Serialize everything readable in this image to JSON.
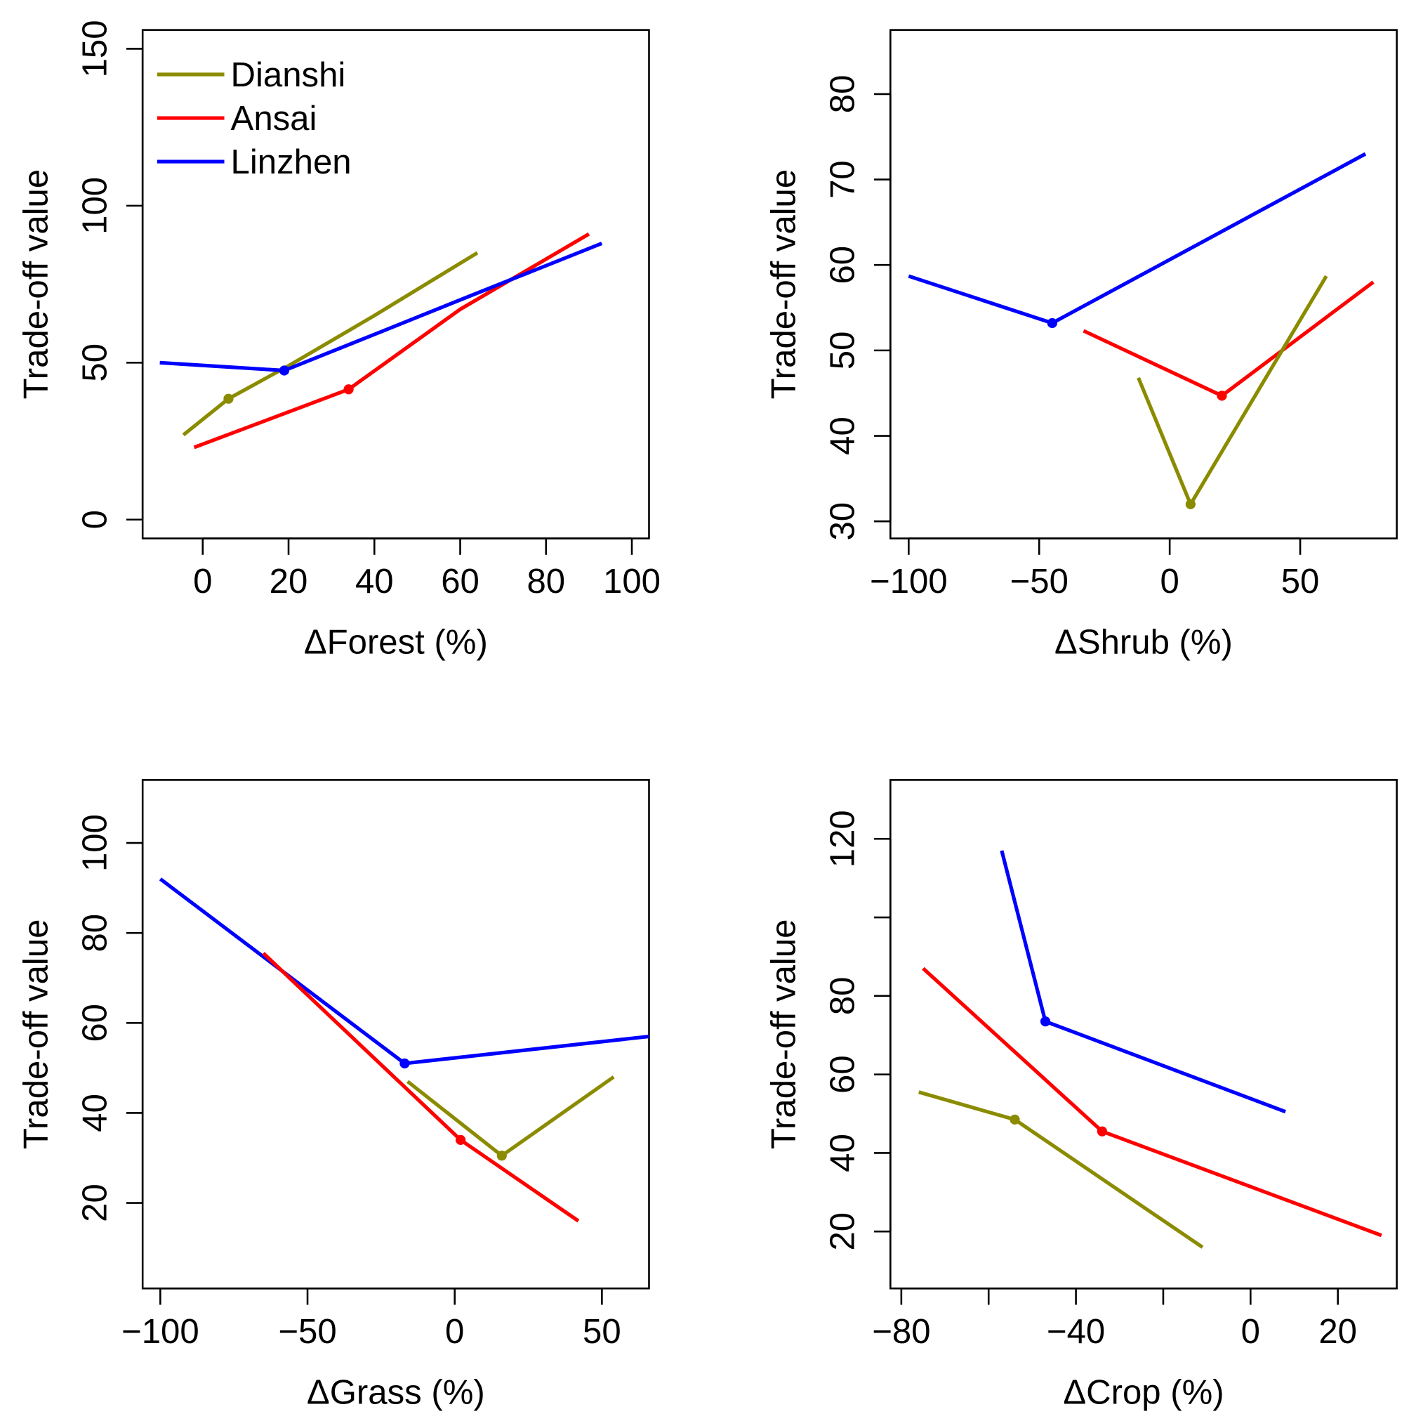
{
  "colors": {
    "Dianshi": "#8b8b00",
    "Ansai": "#ff0000",
    "Linzhen": "#0000ff"
  },
  "legend": {
    "entries": [
      "Dianshi",
      "Ansai",
      "Linzhen"
    ],
    "placement": "top-left",
    "panel": 0
  },
  "chart_data": [
    {
      "type": "line",
      "xlabel": "ΔForest (%)",
      "ylabel": "Trade-off value",
      "xlim": [
        -14,
        104
      ],
      "ylim": [
        -6,
        156
      ],
      "xticks": [
        0,
        20,
        40,
        60,
        80,
        100
      ],
      "xtick_labels": [
        "0",
        "20",
        "40",
        "60",
        "80",
        "100"
      ],
      "yticks": [
        0,
        50,
        100,
        150
      ],
      "ytick_labels": [
        "0",
        "50",
        "100",
        "150"
      ],
      "series": [
        {
          "name": "Dianshi",
          "x": [
            -4.5,
            6,
            20,
            40,
            64
          ],
          "y": [
            27,
            38.5,
            49,
            65,
            85
          ],
          "marker": [
            6,
            38.5
          ]
        },
        {
          "name": "Ansai",
          "x": [
            -2,
            34,
            60,
            90
          ],
          "y": [
            23,
            41.5,
            67,
            91
          ],
          "marker": [
            34,
            41.5
          ]
        },
        {
          "name": "Linzhen",
          "x": [
            -10,
            19,
            40,
            60,
            93
          ],
          "y": [
            50,
            47.5,
            59,
            70,
            88
          ],
          "marker": [
            19,
            47.5
          ]
        }
      ]
    },
    {
      "type": "line",
      "xlabel": "ΔShrub (%)",
      "ylabel": "Trade-off value",
      "xlim": [
        -107,
        87
      ],
      "ylim": [
        28,
        87.5
      ],
      "xticks": [
        -100,
        -50,
        0,
        50
      ],
      "xtick_labels": [
        "−100",
        "−50",
        "0",
        "50"
      ],
      "yticks": [
        30,
        40,
        50,
        60,
        70,
        80
      ],
      "ytick_labels": [
        "30",
        "40",
        "50",
        "60",
        "70",
        "80"
      ],
      "series": [
        {
          "name": "Linzhen",
          "x": [
            -100,
            -45,
            75
          ],
          "y": [
            58.7,
            53.2,
            73
          ],
          "marker": [
            -45,
            53.2
          ]
        },
        {
          "name": "Ansai",
          "x": [
            -33,
            20,
            78
          ],
          "y": [
            52.3,
            44.7,
            58
          ],
          "marker": [
            20,
            44.7
          ]
        },
        {
          "name": "Dianshi",
          "x": [
            -12,
            8,
            60
          ],
          "y": [
            46.8,
            32,
            58.7
          ],
          "marker": [
            8,
            32
          ]
        }
      ]
    },
    {
      "type": "line",
      "xlabel": "ΔGrass (%)",
      "ylabel": "Trade-off value",
      "xlim": [
        -106,
        66
      ],
      "ylim": [
        1,
        114
      ],
      "xticks": [
        -100,
        -50,
        0,
        50
      ],
      "xtick_labels": [
        "−100",
        "−50",
        "0",
        "50"
      ],
      "yticks": [
        20,
        40,
        60,
        80,
        100
      ],
      "ytick_labels": [
        "20",
        "40",
        "60",
        "80",
        "100"
      ],
      "series": [
        {
          "name": "Linzhen",
          "x": [
            -100,
            -17,
            66
          ],
          "y": [
            92,
            51,
            57
          ],
          "marker": [
            -17,
            51
          ]
        },
        {
          "name": "Ansai",
          "x": [
            -65,
            2,
            42
          ],
          "y": [
            75.5,
            34,
            16
          ],
          "marker": [
            2,
            34
          ]
        },
        {
          "name": "Dianshi",
          "x": [
            -16,
            16,
            54
          ],
          "y": [
            47,
            30.5,
            48
          ],
          "marker": [
            16,
            30.5
          ]
        }
      ]
    },
    {
      "type": "line",
      "xlabel": "ΔCrop (%)",
      "ylabel": "Trade-off value",
      "xlim": [
        -82.5,
        33.5
      ],
      "ylim": [
        5.5,
        135
      ],
      "xticks": [
        -80,
        -60,
        -40,
        -20,
        0,
        20
      ],
      "xtick_labels": [
        "−80",
        "",
        "−40",
        "",
        "0",
        "20"
      ],
      "yticks": [
        20,
        40,
        60,
        80,
        100,
        120
      ],
      "ytick_labels": [
        "20",
        "40",
        "60",
        "80",
        "",
        "120"
      ],
      "series": [
        {
          "name": "Linzhen",
          "x": [
            -57,
            -47,
            8
          ],
          "y": [
            117,
            73.5,
            50.5
          ],
          "marker": [
            -47,
            73.5
          ]
        },
        {
          "name": "Ansai",
          "x": [
            -75,
            -34,
            30
          ],
          "y": [
            87,
            45.5,
            19
          ],
          "marker": [
            -34,
            45.5
          ]
        },
        {
          "name": "Dianshi",
          "x": [
            -76,
            -54,
            -11
          ],
          "y": [
            55.5,
            48.5,
            16
          ],
          "marker": [
            -54,
            48.5
          ]
        }
      ]
    }
  ]
}
